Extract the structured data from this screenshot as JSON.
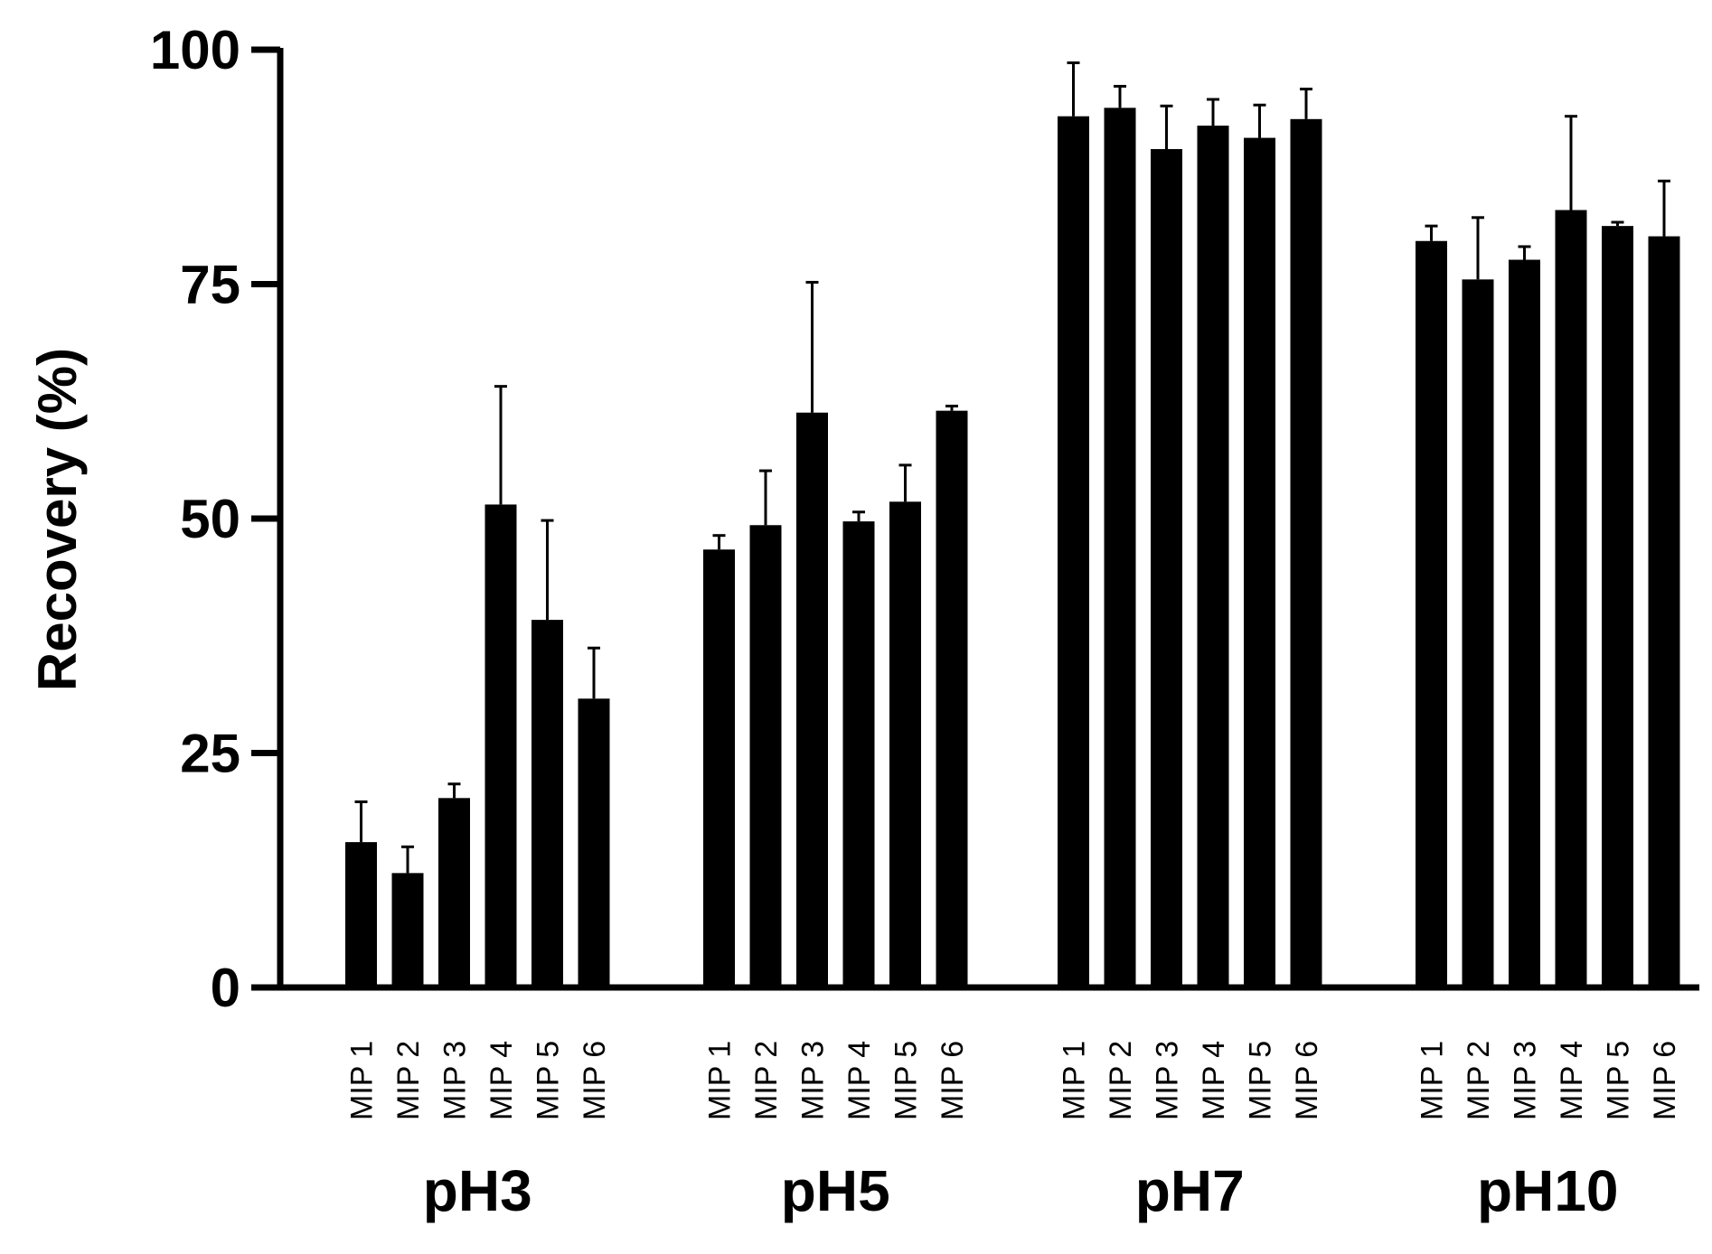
{
  "chart_data": {
    "type": "bar",
    "ylabel": "Recovery (%)",
    "ylim": [
      0,
      100
    ],
    "yticks": [
      0,
      25,
      50,
      75,
      100
    ],
    "grid": false,
    "legend": "none",
    "bar_color": "#000000",
    "groups": [
      {
        "name": "pH3",
        "categories": [
          "MIP 1",
          "MIP 2",
          "MIP 3",
          "MIP 4",
          "MIP 5",
          "MIP 6"
        ],
        "values": [
          15.5,
          12.2,
          20.2,
          51.5,
          39.2,
          30.8
        ],
        "errors": [
          4.3,
          2.8,
          1.5,
          12.6,
          10.6,
          5.4
        ]
      },
      {
        "name": "pH5",
        "categories": [
          "MIP 1",
          "MIP 2",
          "MIP 3",
          "MIP 4",
          "MIP 5",
          "MIP 6"
        ],
        "values": [
          46.7,
          49.3,
          61.3,
          49.7,
          51.8,
          61.5
        ],
        "errors": [
          1.5,
          5.8,
          13.9,
          1.0,
          3.9,
          0.5
        ]
      },
      {
        "name": "pH7",
        "categories": [
          "MIP 1",
          "MIP 2",
          "MIP 3",
          "MIP 4",
          "MIP 5",
          "MIP 6"
        ],
        "values": [
          92.9,
          93.8,
          89.4,
          91.9,
          90.6,
          92.6
        ],
        "errors": [
          5.7,
          2.3,
          4.6,
          2.8,
          3.5,
          3.2
        ]
      },
      {
        "name": "pH10",
        "categories": [
          "MIP 1",
          "MIP 2",
          "MIP 3",
          "MIP 4",
          "MIP 5",
          "MIP 6"
        ],
        "values": [
          79.6,
          75.5,
          77.6,
          82.9,
          81.2,
          80.1
        ],
        "errors": [
          1.6,
          6.6,
          1.4,
          10.0,
          0.4,
          5.9
        ]
      }
    ]
  }
}
